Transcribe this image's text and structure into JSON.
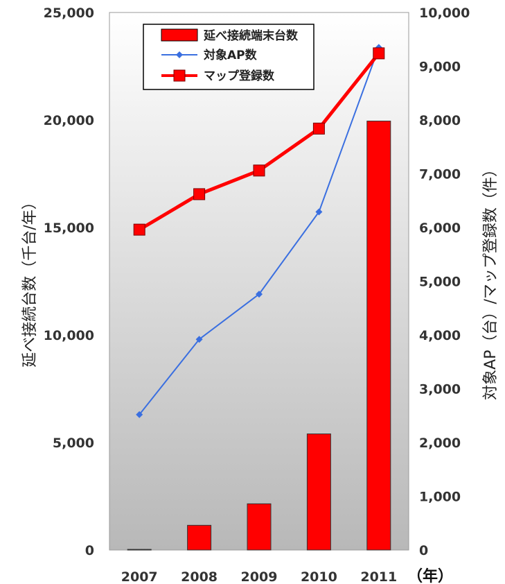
{
  "chart_data": {
    "type": "bar+line",
    "categories": [
      "2007",
      "2008",
      "2009",
      "2010",
      "2011"
    ],
    "x_unit_label": "（年）",
    "left_axis": {
      "label": "延べ接続台数（千台/年）",
      "range": [
        0,
        25000
      ],
      "ticks": [
        "0",
        "5,000",
        "10,000",
        "15,000",
        "20,000",
        "25,000"
      ]
    },
    "right_axis": {
      "label": "対象AP（台）/マップ登録数（件）",
      "range": [
        0,
        10000
      ],
      "ticks": [
        "0",
        "1,000",
        "2,000",
        "3,000",
        "4,000",
        "5,000",
        "6,000",
        "7,000",
        "8,000",
        "9,000",
        "10,000"
      ]
    },
    "series": [
      {
        "name": "延べ接続端末台数",
        "type": "bar",
        "axis": "left",
        "color": "#ff0000",
        "values": [
          30,
          1150,
          2150,
          5400,
          19950
        ]
      },
      {
        "name": "対象AP数",
        "type": "line",
        "marker": "diamond",
        "axis": "right",
        "color": "#3a6fe0",
        "values": [
          2520,
          3920,
          4760,
          6290,
          9350
        ]
      },
      {
        "name": "マップ登録数",
        "type": "line",
        "marker": "square",
        "axis": "right",
        "color": "#ff0000",
        "values": [
          5960,
          6620,
          7060,
          7840,
          9240
        ]
      }
    ],
    "legend_position": "top-left"
  }
}
